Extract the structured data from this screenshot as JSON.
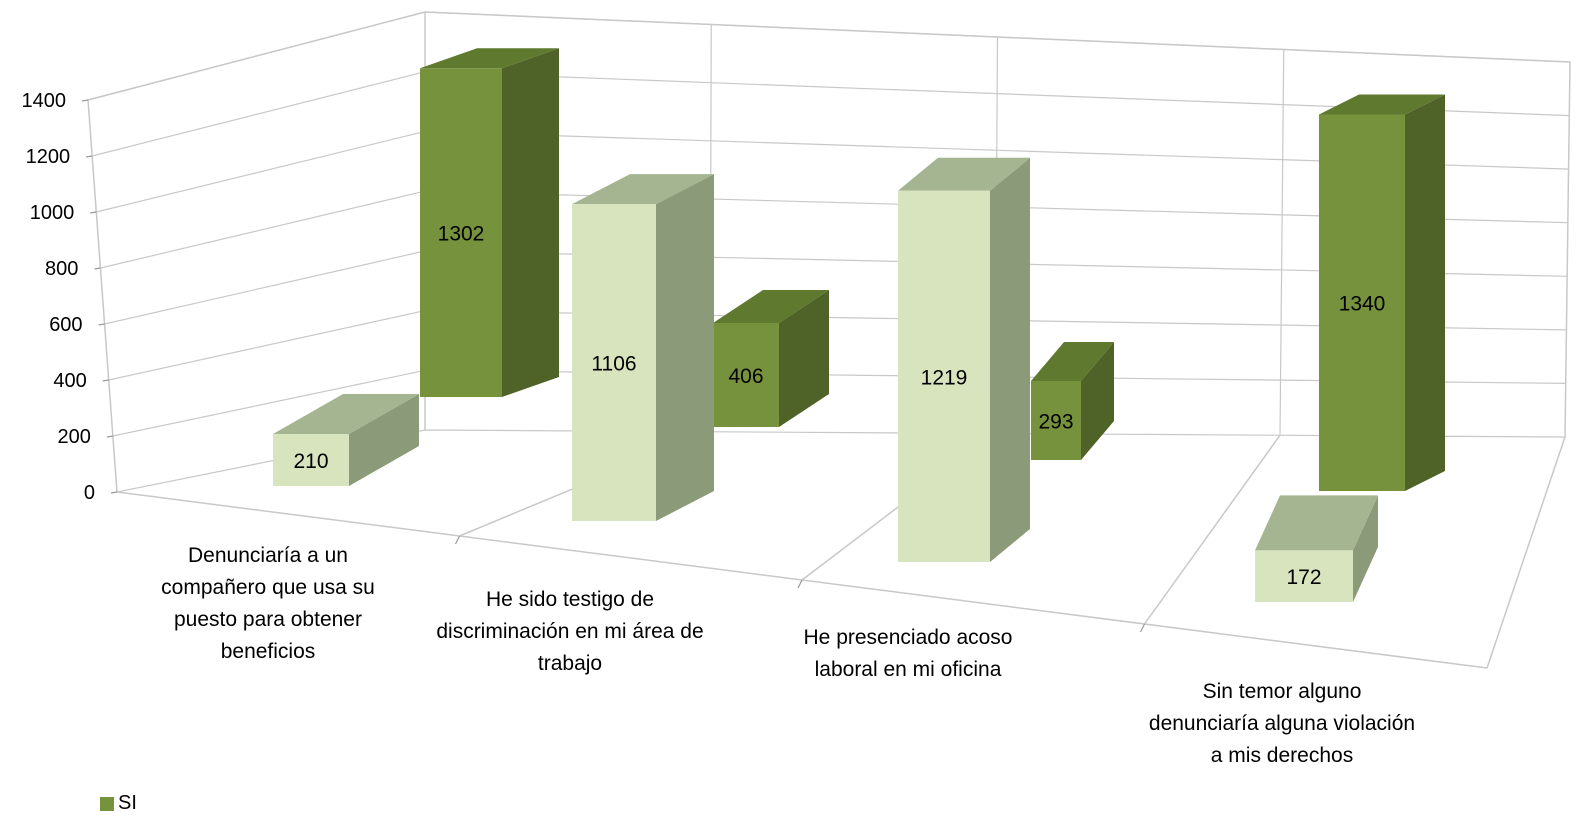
{
  "chart_data": {
    "type": "bar",
    "title": "",
    "categories": [
      [
        "Denunciaría a un",
        "compañero que usa su",
        "puesto para obtener",
        "beneficios"
      ],
      [
        "He sido testigo de",
        "discriminación en mi área de",
        "trabajo"
      ],
      [
        "He presenciado acoso",
        "laboral en mi oficina"
      ],
      [
        "Sin temor alguno",
        "denunciaría alguna violación",
        "a mis derechos"
      ]
    ],
    "series": [
      {
        "name": "SI",
        "values": [
          1302,
          406,
          293,
          1340
        ]
      },
      {
        "name": "",
        "values": [
          210,
          1106,
          1219,
          172
        ]
      }
    ],
    "ylim": [
      0,
      1400
    ],
    "yticks": [
      "0",
      "200",
      "400",
      "600",
      "800",
      "1000",
      "1200",
      "1400"
    ],
    "grid": true,
    "legend_position": "bottom-left",
    "colors": {
      "series_si": {
        "front": "#76923c",
        "top": "#5f7a2f",
        "side": "#4f6228"
      },
      "series_other": {
        "front": "#d7e4bd",
        "top": "#a5b592",
        "side": "#8b9a78"
      },
      "grid": "#c8c8c8"
    }
  },
  "legend": {
    "label": "SI"
  }
}
